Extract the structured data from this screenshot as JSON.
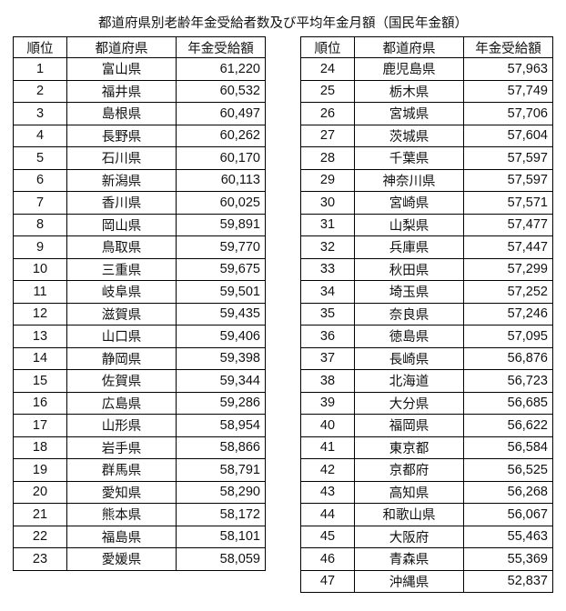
{
  "title": "都道府県別老齢年金受給者数及び平均年金月額（国民年金額）",
  "headers": [
    "順位",
    "都道府県",
    "年金受給額"
  ],
  "rows": [
    [
      "1",
      "富山県",
      "61,220"
    ],
    [
      "2",
      "福井県",
      "60,532"
    ],
    [
      "3",
      "島根県",
      "60,497"
    ],
    [
      "4",
      "長野県",
      "60,262"
    ],
    [
      "5",
      "石川県",
      "60,170"
    ],
    [
      "6",
      "新潟県",
      "60,113"
    ],
    [
      "7",
      "香川県",
      "60,025"
    ],
    [
      "8",
      "岡山県",
      "59,891"
    ],
    [
      "9",
      "鳥取県",
      "59,770"
    ],
    [
      "10",
      "三重県",
      "59,675"
    ],
    [
      "11",
      "岐阜県",
      "59,501"
    ],
    [
      "12",
      "滋賀県",
      "59,435"
    ],
    [
      "13",
      "山口県",
      "59,406"
    ],
    [
      "14",
      "静岡県",
      "59,398"
    ],
    [
      "15",
      "佐賀県",
      "59,344"
    ],
    [
      "16",
      "広島県",
      "59,286"
    ],
    [
      "17",
      "山形県",
      "58,954"
    ],
    [
      "18",
      "岩手県",
      "58,866"
    ],
    [
      "19",
      "群馬県",
      "58,791"
    ],
    [
      "20",
      "愛知県",
      "58,290"
    ],
    [
      "21",
      "熊本県",
      "58,172"
    ],
    [
      "22",
      "福島県",
      "58,101"
    ],
    [
      "23",
      "愛媛県",
      "58,059"
    ],
    [
      "24",
      "鹿児島県",
      "57,963"
    ],
    [
      "25",
      "栃木県",
      "57,749"
    ],
    [
      "26",
      "宮城県",
      "57,706"
    ],
    [
      "27",
      "茨城県",
      "57,604"
    ],
    [
      "28",
      "千葉県",
      "57,597"
    ],
    [
      "29",
      "神奈川県",
      "57,597"
    ],
    [
      "30",
      "宮崎県",
      "57,571"
    ],
    [
      "31",
      "山梨県",
      "57,477"
    ],
    [
      "32",
      "兵庫県",
      "57,447"
    ],
    [
      "33",
      "秋田県",
      "57,299"
    ],
    [
      "34",
      "埼玉県",
      "57,252"
    ],
    [
      "35",
      "奈良県",
      "57,246"
    ],
    [
      "36",
      "徳島県",
      "57,095"
    ],
    [
      "37",
      "長崎県",
      "56,876"
    ],
    [
      "38",
      "北海道",
      "56,723"
    ],
    [
      "39",
      "大分県",
      "56,685"
    ],
    [
      "40",
      "福岡県",
      "56,622"
    ],
    [
      "41",
      "東京都",
      "56,584"
    ],
    [
      "42",
      "京都府",
      "56,525"
    ],
    [
      "43",
      "高知県",
      "56,268"
    ],
    [
      "44",
      "和歌山県",
      "56,067"
    ],
    [
      "45",
      "大阪府",
      "55,463"
    ],
    [
      "46",
      "青森県",
      "55,369"
    ],
    [
      "47",
      "沖縄県",
      "52,837"
    ]
  ]
}
